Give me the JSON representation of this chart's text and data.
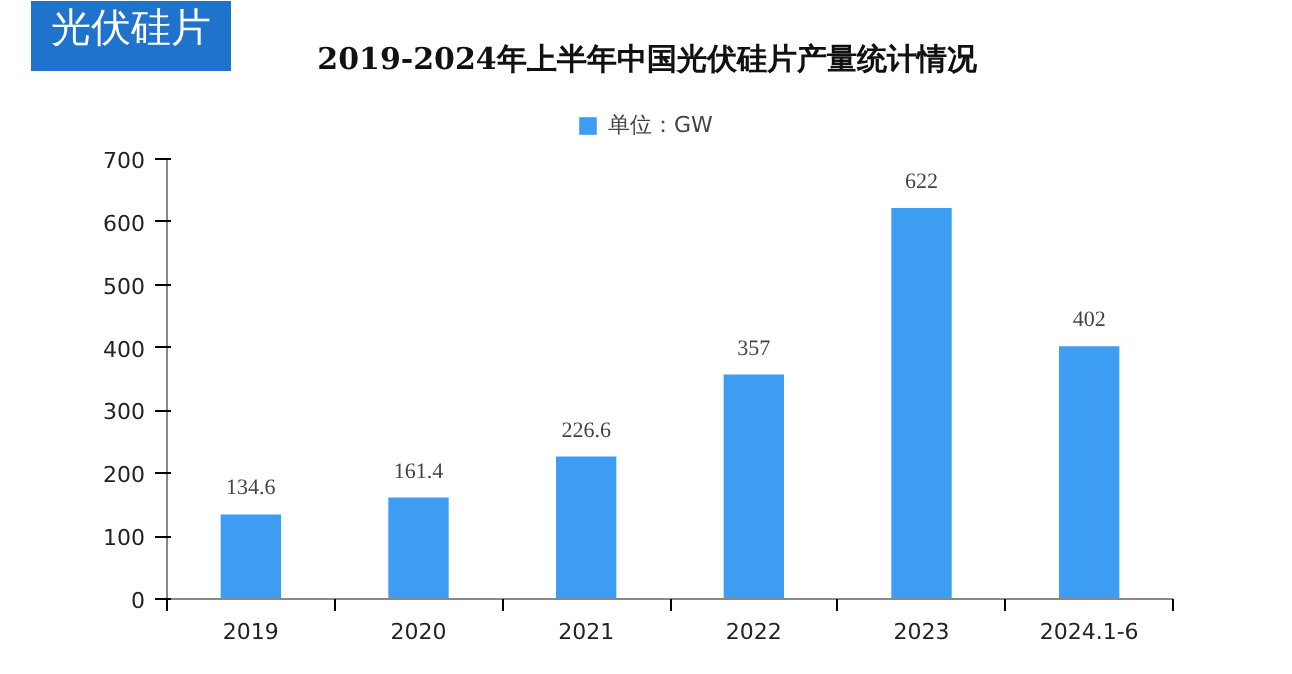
{
  "chart_data": {
    "type": "bar",
    "title": "2019-2024年上半年中国光伏硅片产量统计情况",
    "annotations": [
      "光伏硅片"
    ],
    "categories": [
      "2019",
      "2020",
      "2021",
      "2022",
      "2023",
      "2024.1-6"
    ],
    "series": [
      {
        "name": "单位：GW",
        "color": "#3d9df2",
        "values": [
          134.6,
          161.4,
          226.6,
          357,
          622,
          402
        ]
      }
    ],
    "ylim": [
      0,
      700
    ],
    "yticks": [
      0,
      100,
      200,
      300,
      400,
      500,
      600,
      700
    ],
    "data_labels": true,
    "legend": "top",
    "grid": false
  }
}
